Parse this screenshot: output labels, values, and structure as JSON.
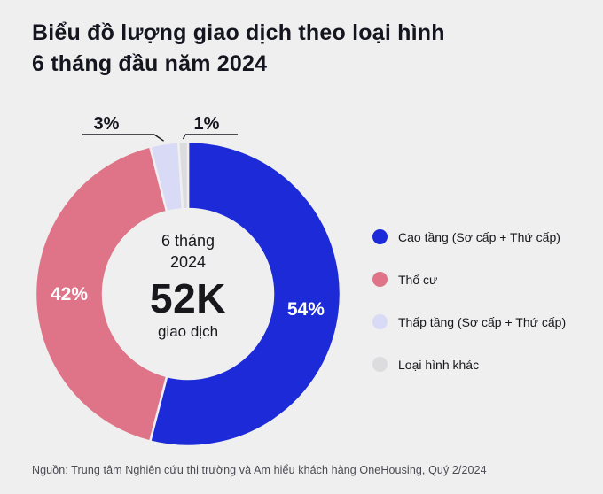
{
  "page": {
    "bg_color": "#efefef",
    "title_line1": "Biểu đồ lượng giao dịch theo loại hình",
    "title_line2": "6 tháng đầu năm 2024",
    "source": "Nguồn: Trung tâm Nghiên cứu thị trường và Am hiểu khách hàng OneHousing, Quý 2/2024"
  },
  "donut_center": {
    "period_line1": "6 tháng",
    "period_line2": "2024",
    "value": "52K",
    "unit": "giao dịch"
  },
  "chart_data": {
    "type": "pie",
    "donut": true,
    "title": "Biểu đồ lượng giao dịch theo loại hình 6 tháng đầu năm 2024",
    "center_label": "6 tháng 2024 — 52K giao dịch",
    "legend_position": "right",
    "start_angle_deg": 0,
    "direction": "clockwise",
    "series": [
      {
        "name": "Cao tầng (Sơ cấp + Thứ cấp)",
        "value": 54,
        "percent_label": "54%",
        "color": "#1c2ad8",
        "label_style": "inside"
      },
      {
        "name": "Thổ cư",
        "value": 42,
        "percent_label": "42%",
        "color": "#df7488",
        "label_style": "inside"
      },
      {
        "name": "Thấp tầng (Sơ cấp + Thứ cấp)",
        "value": 3,
        "percent_label": "3%",
        "color": "#d9daf6",
        "label_style": "callout"
      },
      {
        "name": "Loại hình khác",
        "value": 1,
        "percent_label": "1%",
        "color": "#dcdcdf",
        "label_style": "callout"
      }
    ]
  }
}
